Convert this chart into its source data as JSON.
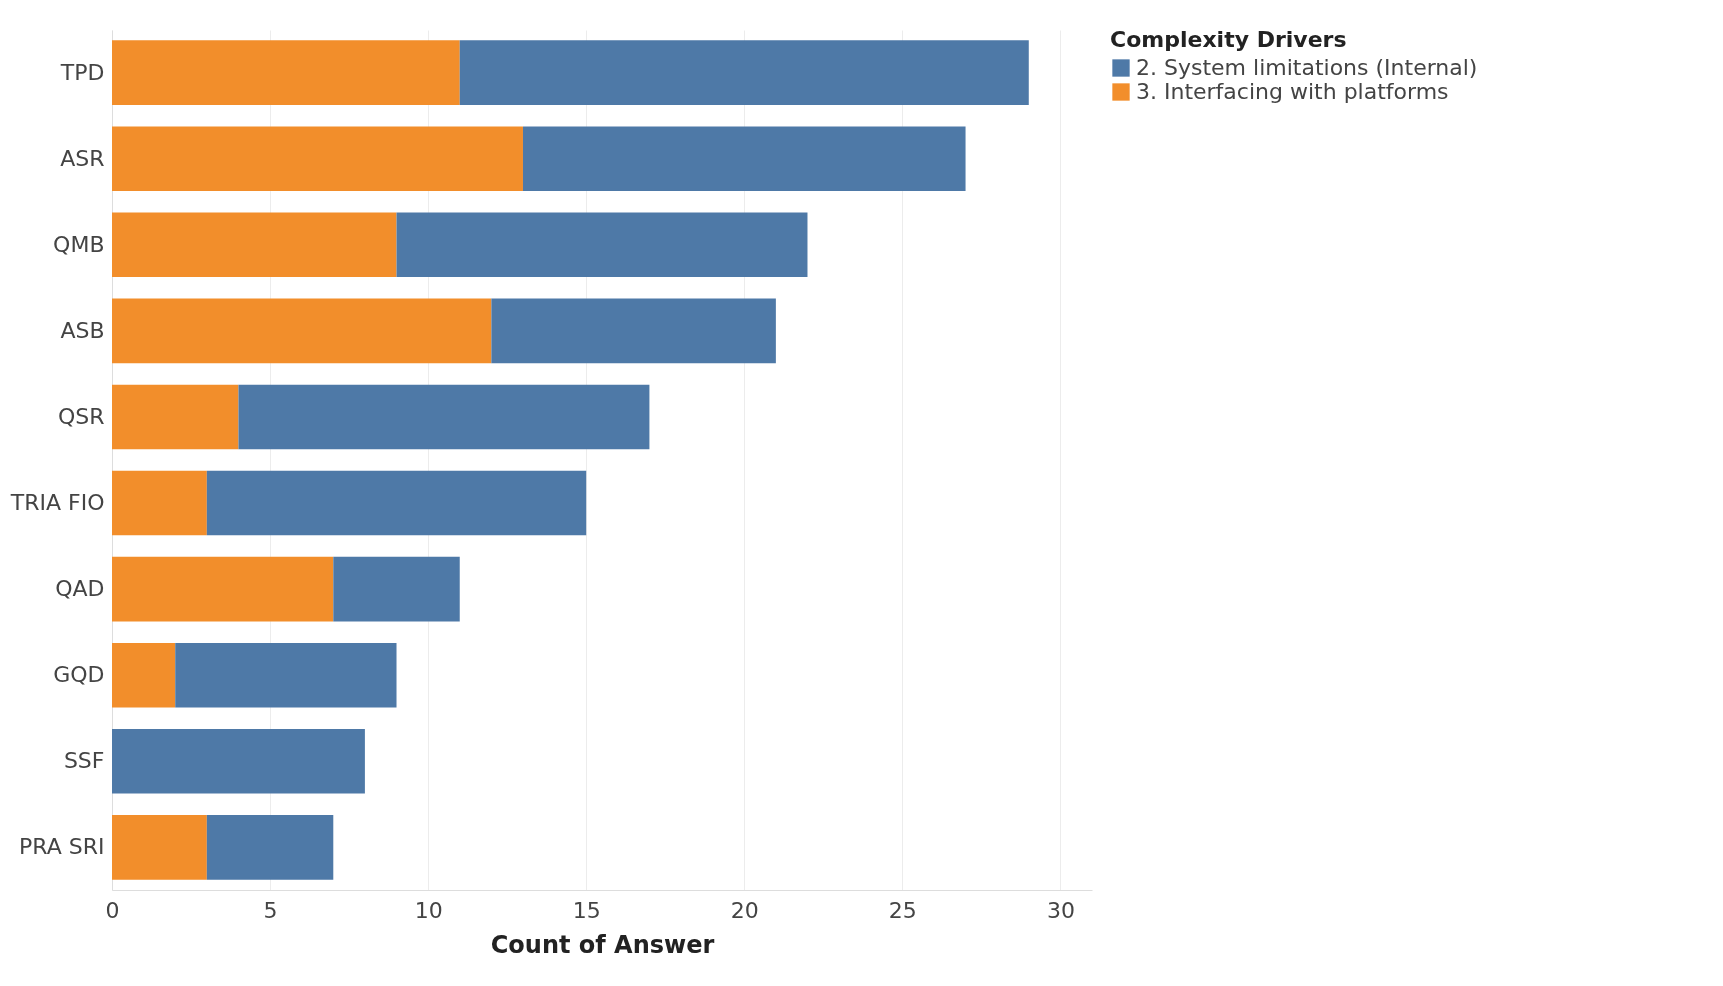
{
  "chart_data": {
    "type": "bar",
    "orientation": "horizontal",
    "stacked": true,
    "xlabel": "Count of Answer",
    "legend_title": "Complexity Drivers",
    "legend": "right",
    "categories": [
      "TPD",
      "ASR",
      "QMB",
      "ASB",
      "QSR",
      "TRIA FIO",
      "QAD",
      "GQD",
      "SSF",
      "PRA SRI"
    ],
    "series": [
      {
        "name": "3. Interfacing with platforms",
        "color": "#f28e2b",
        "values": [
          11,
          13,
          9,
          12,
          4,
          3,
          7,
          2,
          0,
          3
        ]
      },
      {
        "name": "2. System limitations (Internal)",
        "color": "#4e79a7",
        "values": [
          18,
          14,
          13,
          9,
          13,
          12,
          4,
          7,
          8,
          4
        ]
      }
    ],
    "xlim": [
      0,
      31
    ],
    "xticks": [
      0,
      5,
      10,
      15,
      20,
      25,
      30
    ],
    "grid": "x"
  }
}
